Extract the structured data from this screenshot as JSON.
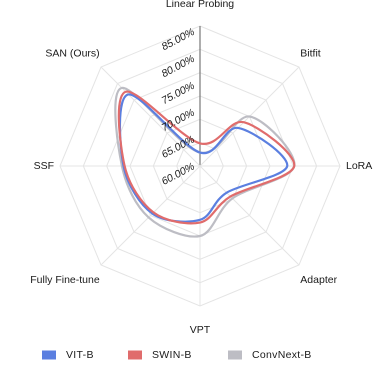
{
  "chart_data": {
    "type": "radar",
    "axes": [
      "Linear Probing",
      "Bitfit",
      "LoRA",
      "Adapter",
      "VPT",
      "Fully Fine-tune",
      "SSF",
      "SAN (Ours)"
    ],
    "rlim": [
      60,
      86
    ],
    "tick_labels": [
      "60.00%",
      "65.00%",
      "70.00%",
      "75.00%",
      "80.00%",
      "85.00%"
    ],
    "tick_values": [
      60,
      65,
      70,
      75,
      80,
      85
    ],
    "grid": true,
    "legend_position": "bottom",
    "series": [
      {
        "name": "VIT-B",
        "color": "#5b7fe0",
        "values": [
          62.5,
          70.0,
          76.2,
          67.0,
          70.0,
          72.5,
          74.2,
          78.8
        ]
      },
      {
        "name": "SWIN-B",
        "color": "#e06c6c",
        "values": [
          64.2,
          71.5,
          77.5,
          68.0,
          70.5,
          72.2,
          74.0,
          79.5
        ]
      },
      {
        "name": "ConvNext-B",
        "color": "#bdbdc4",
        "values": [
          62.5,
          73.0,
          77.5,
          68.5,
          73.0,
          73.5,
          74.5,
          80.5
        ]
      }
    ]
  }
}
